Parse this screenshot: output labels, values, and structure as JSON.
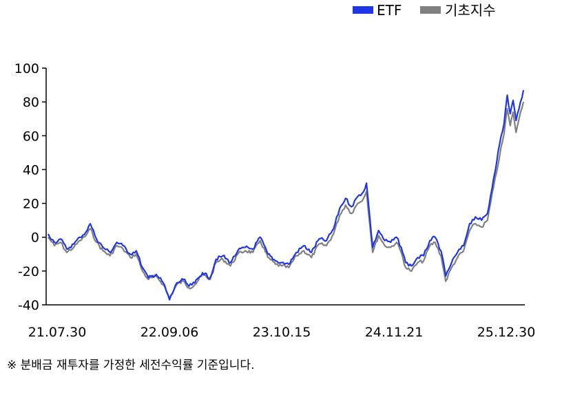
{
  "chart_data": {
    "type": "line",
    "title": "",
    "xlabel": "",
    "ylabel": "",
    "ylim": [
      -40,
      100
    ],
    "yticks": [
      100,
      80,
      60,
      40,
      20,
      0,
      -20,
      -40
    ],
    "xticks": [
      "21.07.30",
      "22.09.06",
      "23.10.15",
      "24.11.21",
      "25.12.30"
    ],
    "x_range": [
      "2021-07-30",
      "2025-12-30"
    ],
    "grid": false,
    "legend_position": "top-right",
    "series": [
      {
        "name": "기초지수",
        "color": "#808080",
        "points": [
          [
            "2021-07-30",
            0
          ],
          [
            "2021-08-20",
            -5
          ],
          [
            "2021-09-10",
            -3
          ],
          [
            "2021-10-01",
            -9
          ],
          [
            "2021-10-25",
            -6
          ],
          [
            "2021-11-15",
            -2
          ],
          [
            "2021-12-05",
            1
          ],
          [
            "2021-12-20",
            5
          ],
          [
            "2022-01-10",
            -3
          ],
          [
            "2022-02-01",
            -8
          ],
          [
            "2022-02-25",
            -11
          ],
          [
            "2022-03-20",
            -5
          ],
          [
            "2022-04-10",
            -7
          ],
          [
            "2022-05-05",
            -12
          ],
          [
            "2022-05-25",
            -10
          ],
          [
            "2022-06-15",
            -20
          ],
          [
            "2022-07-05",
            -25
          ],
          [
            "2022-08-01",
            -23
          ],
          [
            "2022-08-25",
            -28
          ],
          [
            "2022-09-15",
            -36
          ],
          [
            "2022-10-10",
            -28
          ],
          [
            "2022-11-01",
            -26
          ],
          [
            "2022-11-20",
            -30
          ],
          [
            "2022-12-10",
            -28
          ],
          [
            "2023-01-05",
            -22
          ],
          [
            "2023-01-31",
            -25
          ],
          [
            "2023-02-20",
            -15
          ],
          [
            "2023-03-15",
            -13
          ],
          [
            "2023-04-10",
            -17
          ],
          [
            "2023-05-05",
            -10
          ],
          [
            "2023-05-30",
            -8
          ],
          [
            "2023-06-25",
            -9
          ],
          [
            "2023-07-20",
            -2
          ],
          [
            "2023-08-15",
            -12
          ],
          [
            "2023-09-10",
            -16
          ],
          [
            "2023-10-01",
            -17
          ],
          [
            "2023-10-25",
            -18
          ],
          [
            "2023-11-20",
            -11
          ],
          [
            "2023-12-15",
            -8
          ],
          [
            "2024-01-10",
            -12
          ],
          [
            "2024-02-05",
            -4
          ],
          [
            "2024-03-01",
            -5
          ],
          [
            "2024-03-25",
            2
          ],
          [
            "2024-04-15",
            13
          ],
          [
            "2024-05-05",
            19
          ],
          [
            "2024-05-25",
            14
          ],
          [
            "2024-06-15",
            20
          ],
          [
            "2024-07-05",
            23
          ],
          [
            "2024-07-15",
            27
          ],
          [
            "2024-08-05",
            -9
          ],
          [
            "2024-08-25",
            1
          ],
          [
            "2024-09-15",
            -5
          ],
          [
            "2024-10-05",
            -6
          ],
          [
            "2024-10-25",
            -3
          ],
          [
            "2024-11-10",
            -9
          ],
          [
            "2024-11-25",
            -18
          ],
          [
            "2024-12-15",
            -20
          ],
          [
            "2025-01-05",
            -15
          ],
          [
            "2025-01-25",
            -14
          ],
          [
            "2025-02-15",
            -5
          ],
          [
            "2025-03-05",
            -3
          ],
          [
            "2025-03-25",
            -11
          ],
          [
            "2025-04-10",
            -26
          ],
          [
            "2025-04-30",
            -18
          ],
          [
            "2025-05-20",
            -12
          ],
          [
            "2025-06-10",
            -8
          ],
          [
            "2025-06-30",
            4
          ],
          [
            "2025-07-20",
            8
          ],
          [
            "2025-08-10",
            6
          ],
          [
            "2025-08-30",
            10
          ],
          [
            "2025-09-20",
            30
          ],
          [
            "2025-10-10",
            48
          ],
          [
            "2025-10-25",
            61
          ],
          [
            "2025-11-05",
            76
          ],
          [
            "2025-11-15",
            66
          ],
          [
            "2025-11-25",
            74
          ],
          [
            "2025-12-05",
            62
          ],
          [
            "2025-12-15",
            70
          ],
          [
            "2025-12-30",
            80
          ]
        ]
      },
      {
        "name": "ETF",
        "color": "#1f36e6",
        "points": [
          [
            "2021-07-30",
            2
          ],
          [
            "2021-08-20",
            -3
          ],
          [
            "2021-09-10",
            -1
          ],
          [
            "2021-10-01",
            -7
          ],
          [
            "2021-10-25",
            -4
          ],
          [
            "2021-11-15",
            0
          ],
          [
            "2021-12-05",
            3
          ],
          [
            "2021-12-20",
            8
          ],
          [
            "2022-01-10",
            -1
          ],
          [
            "2022-02-01",
            -6
          ],
          [
            "2022-02-25",
            -9
          ],
          [
            "2022-03-20",
            -3
          ],
          [
            "2022-04-10",
            -5
          ],
          [
            "2022-05-05",
            -10
          ],
          [
            "2022-05-25",
            -8
          ],
          [
            "2022-06-15",
            -18
          ],
          [
            "2022-07-05",
            -24
          ],
          [
            "2022-08-01",
            -22
          ],
          [
            "2022-08-25",
            -27
          ],
          [
            "2022-09-15",
            -37
          ],
          [
            "2022-10-10",
            -27
          ],
          [
            "2022-11-01",
            -25
          ],
          [
            "2022-11-20",
            -29
          ],
          [
            "2022-12-10",
            -27
          ],
          [
            "2023-01-05",
            -21
          ],
          [
            "2023-01-31",
            -24
          ],
          [
            "2023-02-20",
            -13
          ],
          [
            "2023-03-15",
            -11
          ],
          [
            "2023-04-10",
            -15
          ],
          [
            "2023-05-05",
            -8
          ],
          [
            "2023-05-30",
            -6
          ],
          [
            "2023-06-25",
            -7
          ],
          [
            "2023-07-20",
            0
          ],
          [
            "2023-08-15",
            -10
          ],
          [
            "2023-09-10",
            -14
          ],
          [
            "2023-10-01",
            -15
          ],
          [
            "2023-10-25",
            -16
          ],
          [
            "2023-11-20",
            -9
          ],
          [
            "2023-12-15",
            -5
          ],
          [
            "2024-01-10",
            -9
          ],
          [
            "2024-02-05",
            -1
          ],
          [
            "2024-03-01",
            -2
          ],
          [
            "2024-03-25",
            5
          ],
          [
            "2024-04-15",
            17
          ],
          [
            "2024-05-05",
            23
          ],
          [
            "2024-05-25",
            18
          ],
          [
            "2024-06-15",
            24
          ],
          [
            "2024-07-05",
            27
          ],
          [
            "2024-07-15",
            32
          ],
          [
            "2024-08-05",
            -6
          ],
          [
            "2024-08-25",
            4
          ],
          [
            "2024-09-15",
            -2
          ],
          [
            "2024-10-05",
            -3
          ],
          [
            "2024-10-25",
            0
          ],
          [
            "2024-11-10",
            -6
          ],
          [
            "2024-11-25",
            -15
          ],
          [
            "2024-12-15",
            -17
          ],
          [
            "2025-01-05",
            -12
          ],
          [
            "2025-01-25",
            -11
          ],
          [
            "2025-02-15",
            -2
          ],
          [
            "2025-03-05",
            0
          ],
          [
            "2025-03-25",
            -8
          ],
          [
            "2025-04-10",
            -23
          ],
          [
            "2025-04-30",
            -15
          ],
          [
            "2025-05-20",
            -9
          ],
          [
            "2025-06-10",
            -5
          ],
          [
            "2025-06-30",
            8
          ],
          [
            "2025-07-20",
            12
          ],
          [
            "2025-08-10",
            10
          ],
          [
            "2025-08-30",
            14
          ],
          [
            "2025-09-20",
            35
          ],
          [
            "2025-10-10",
            55
          ],
          [
            "2025-10-25",
            67
          ],
          [
            "2025-11-05",
            84
          ],
          [
            "2025-11-15",
            73
          ],
          [
            "2025-11-25",
            81
          ],
          [
            "2025-12-05",
            69
          ],
          [
            "2025-12-15",
            76
          ],
          [
            "2025-12-30",
            87
          ]
        ]
      }
    ]
  },
  "legend": [
    {
      "label": "ETF",
      "color": "#1f36e6"
    },
    {
      "label": "기초지수",
      "color": "#808080"
    }
  ],
  "note": "※  분배금 재투자를 가정한 세전수익률 기준입니다."
}
